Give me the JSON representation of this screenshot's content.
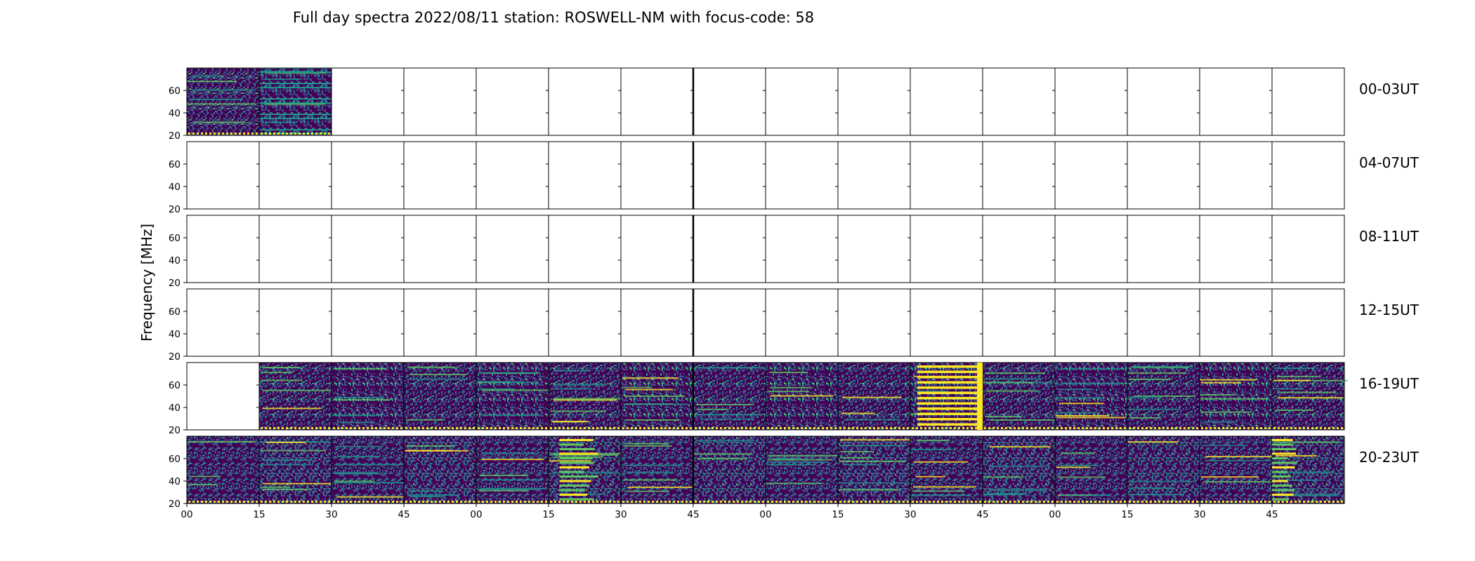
{
  "chart_data": {
    "type": "heatmap",
    "title": "Full day spectra 2022/08/11 station: ROSWELL-NM with focus-code: 58",
    "ylabel": "Frequency [MHz]",
    "xlabel": "",
    "y_ticks": [
      "20",
      "40",
      "60"
    ],
    "ylim": [
      20,
      80
    ],
    "x_ticks": [
      "00",
      "15",
      "30",
      "45",
      "00",
      "15",
      "30",
      "45",
      "00",
      "15",
      "30",
      "45",
      "00",
      "15",
      "30",
      "45"
    ],
    "panels_per_row": 16,
    "panel_minutes": 15,
    "colormap": [
      "#440154",
      "#3b528b",
      "#21918c",
      "#5ec962",
      "#fde725"
    ],
    "rows": [
      {
        "label": "00-03UT",
        "filled": [
          1,
          1,
          0,
          0,
          0,
          0,
          0,
          0,
          0,
          0,
          0,
          0,
          0,
          0,
          0,
          0
        ]
      },
      {
        "label": "04-07UT",
        "filled": [
          0,
          0,
          0,
          0,
          0,
          0,
          0,
          0,
          0,
          0,
          0,
          0,
          0,
          0,
          0,
          0
        ]
      },
      {
        "label": "08-11UT",
        "filled": [
          0,
          0,
          0,
          0,
          0,
          0,
          0,
          0,
          0,
          0,
          0,
          0,
          0,
          0,
          0,
          0
        ]
      },
      {
        "label": "12-15UT",
        "filled": [
          0,
          0,
          0,
          0,
          0,
          0,
          0,
          0,
          0,
          0,
          0,
          0,
          0,
          0,
          0,
          0
        ]
      },
      {
        "label": "16-19UT",
        "filled": [
          0,
          1,
          1,
          1,
          1,
          1,
          1,
          1,
          1,
          1,
          1,
          1,
          1,
          1,
          1,
          1
        ]
      },
      {
        "label": "20-23UT",
        "filled": [
          1,
          1,
          1,
          1,
          1,
          1,
          1,
          1,
          1,
          1,
          1,
          1,
          1,
          1,
          1,
          1
        ]
      }
    ]
  }
}
